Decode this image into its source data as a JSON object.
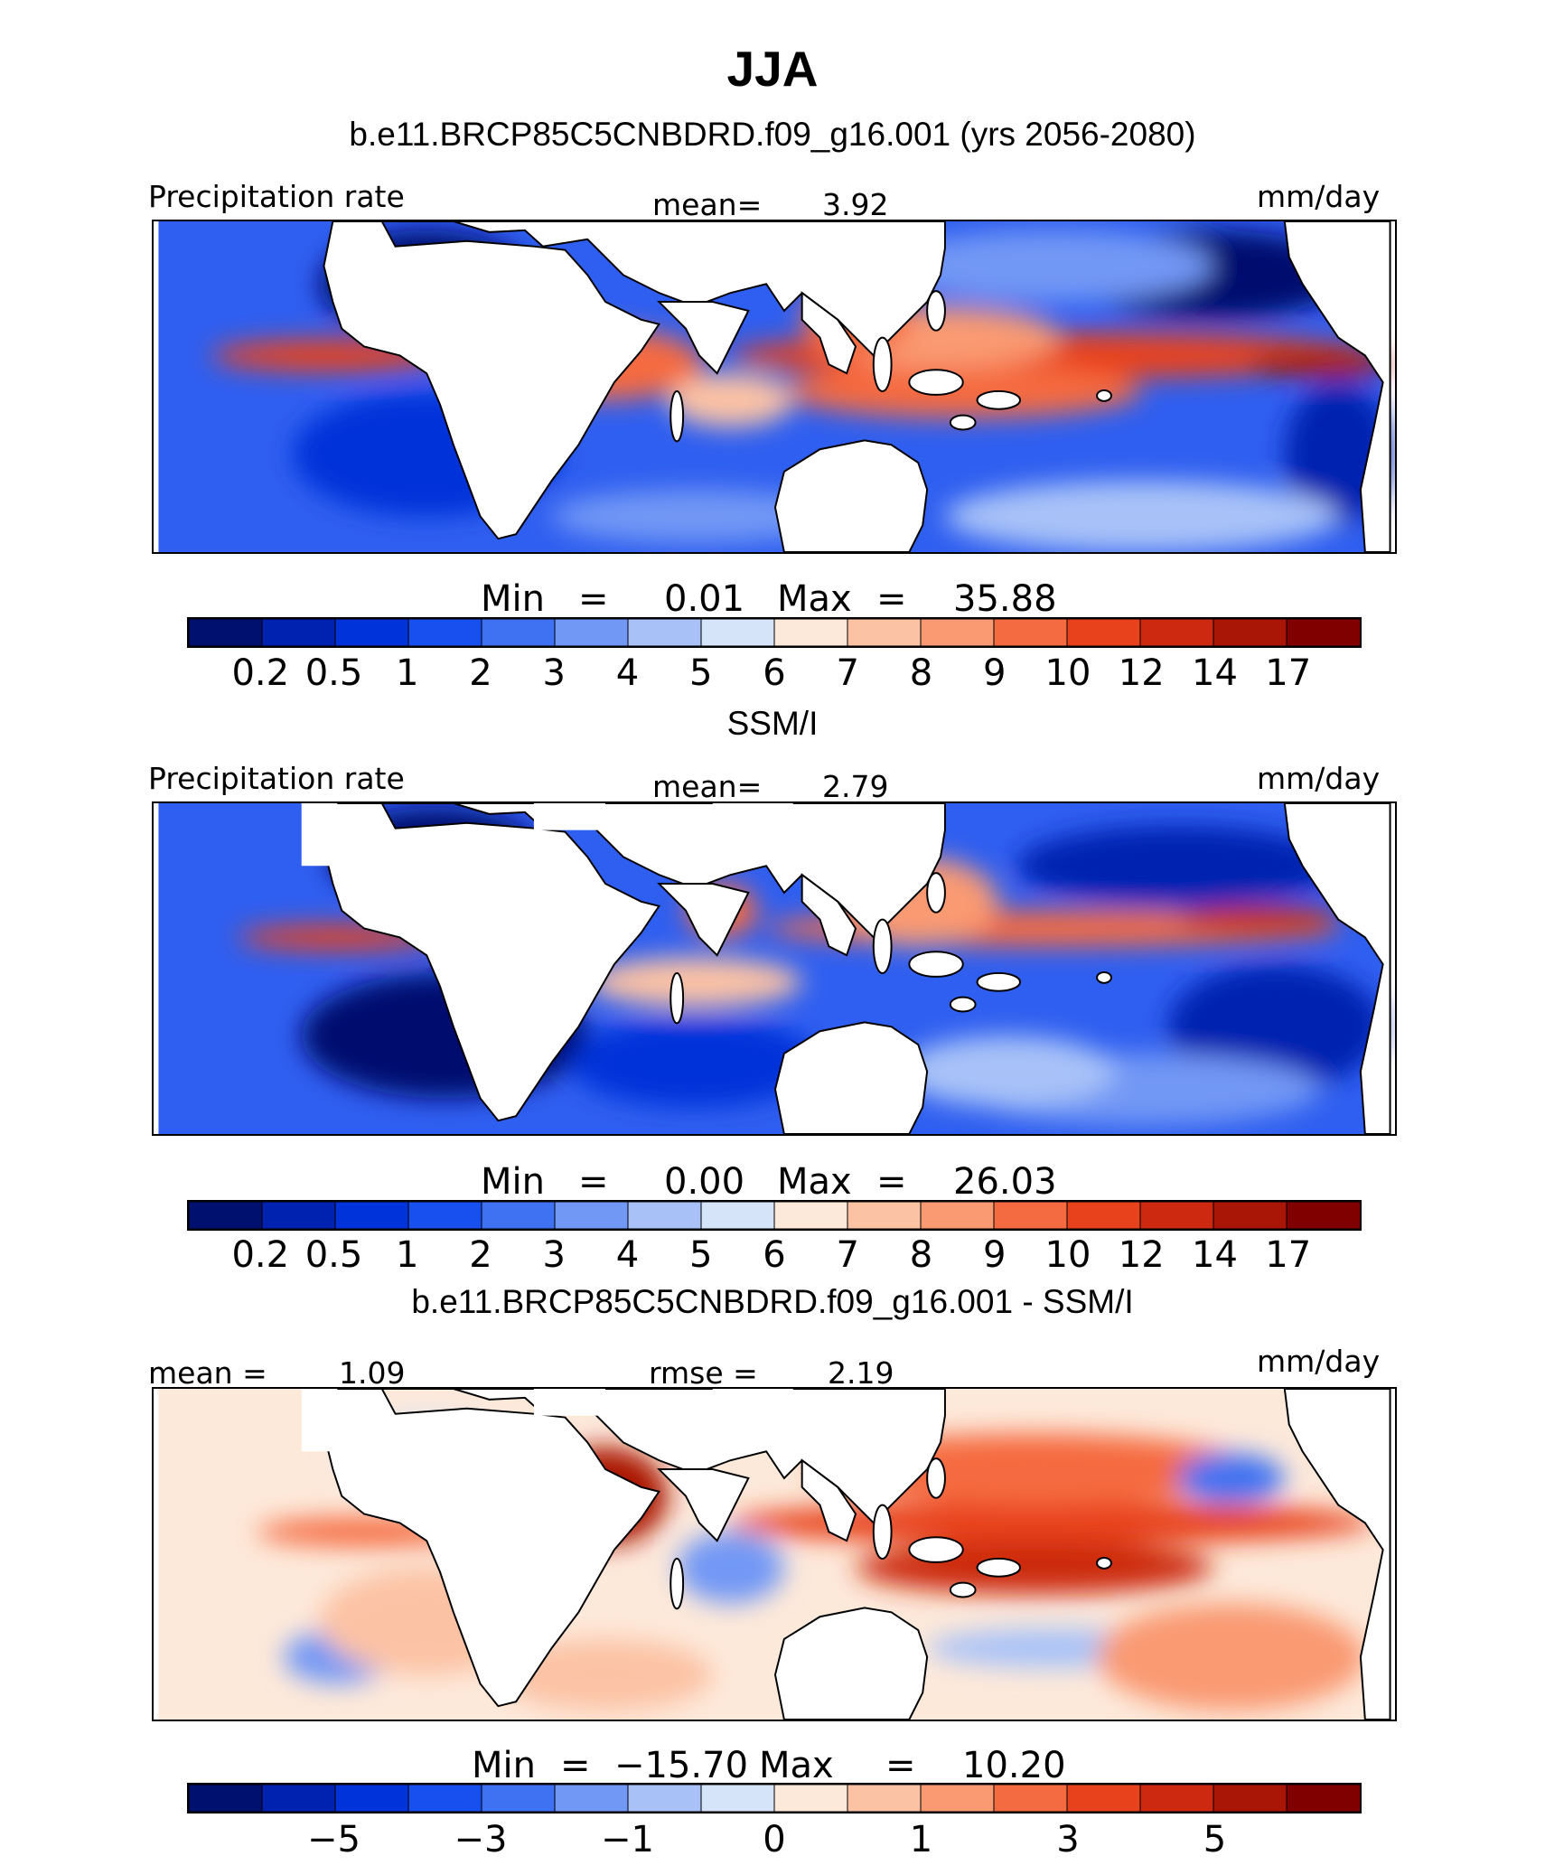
{
  "title": "JJA",
  "panels": [
    {
      "id": "model",
      "heading": "b.e11.BRCP85C5CNBDRD.f09_g16.001 (yrs 2056-2080)",
      "left_label": "Precipitation rate",
      "center_label": "mean=",
      "center_value": "3.92",
      "units": "mm/day",
      "min_label": "Min",
      "min_value": "0.01",
      "max_label": "Max",
      "max_value": "35.88",
      "colorbar_ticks": [
        "0.2",
        "0.5",
        "1",
        "2",
        "3",
        "4",
        "5",
        "6",
        "7",
        "8",
        "9",
        "10",
        "12",
        "14",
        "17"
      ]
    },
    {
      "id": "obs",
      "heading": "SSM/I",
      "left_label": "Precipitation rate",
      "center_label": "mean=",
      "center_value": "2.79",
      "units": "mm/day",
      "min_label": "Min",
      "min_value": "0.00",
      "max_label": "Max",
      "max_value": "26.03",
      "colorbar_ticks": [
        "0.2",
        "0.5",
        "1",
        "2",
        "3",
        "4",
        "5",
        "6",
        "7",
        "8",
        "9",
        "10",
        "12",
        "14",
        "17"
      ]
    },
    {
      "id": "diff",
      "heading": "b.e11.BRCP85C5CNBDRD.f09_g16.001 - SSM/I",
      "left_label": "mean =",
      "left_value": "1.09",
      "center_label": "rmse =",
      "center_value": "2.19",
      "units": "mm/day",
      "min_label": "Min",
      "min_value": "−15.70",
      "max_label": "Max",
      "max_value": "10.20",
      "colorbar_ticks": [
        "−5",
        "−3",
        "−1",
        "0",
        "1",
        "3",
        "5"
      ]
    }
  ],
  "palette": [
    "#00106e",
    "#0022b0",
    "#0033d9",
    "#1750ee",
    "#3f72f2",
    "#7298f5",
    "#a8c2f8",
    "#d6e4fa",
    "#fde9da",
    "#fcc2a4",
    "#f99a72",
    "#f56b41",
    "#e8421d",
    "#cc2910",
    "#aa1606",
    "#800000"
  ]
}
